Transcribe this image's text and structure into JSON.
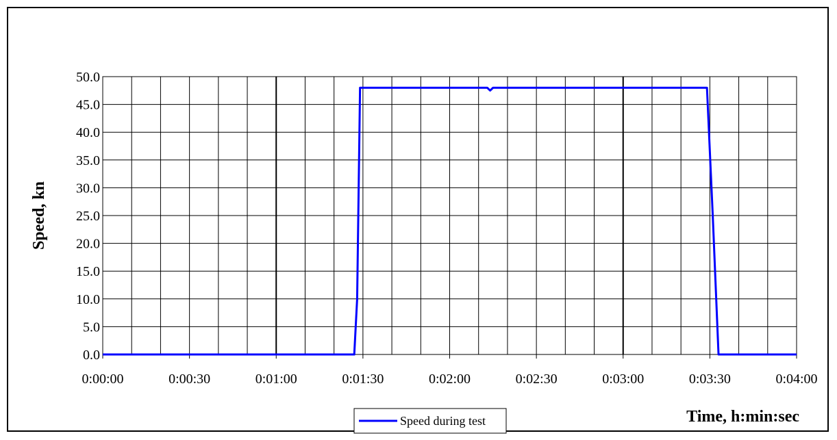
{
  "chart_data": {
    "type": "line",
    "xlabel": "Time, h:min:sec",
    "ylabel": "Speed, kn",
    "x_range_seconds": [
      0,
      240
    ],
    "x_tick_labels": [
      "0:00:00",
      "0:00:30",
      "0:01:00",
      "0:01:30",
      "0:02:00",
      "0:02:30",
      "0:03:00",
      "0:03:30",
      "0:04:00"
    ],
    "ylim": [
      0,
      50
    ],
    "y_tick_labels": [
      "0.0",
      "5.0",
      "10.0",
      "15.0",
      "20.0",
      "25.0",
      "30.0",
      "35.0",
      "40.0",
      "45.0",
      "50.0"
    ],
    "grid": true,
    "legend_position": "bottom-center",
    "series": [
      {
        "name": "Speed during test",
        "color": "#0000ff",
        "x": [
          "0:00:00",
          "0:01:27",
          "0:01:28",
          "0:01:29",
          "0:02:13",
          "0:02:14",
          "0:02:15",
          "0:03:29",
          "0:03:31",
          "0:03:33",
          "0:04:00"
        ],
        "y": [
          0.0,
          0.0,
          10.0,
          48.0,
          48.0,
          47.5,
          48.0,
          48.0,
          25.0,
          0.0,
          0.0
        ]
      }
    ]
  }
}
